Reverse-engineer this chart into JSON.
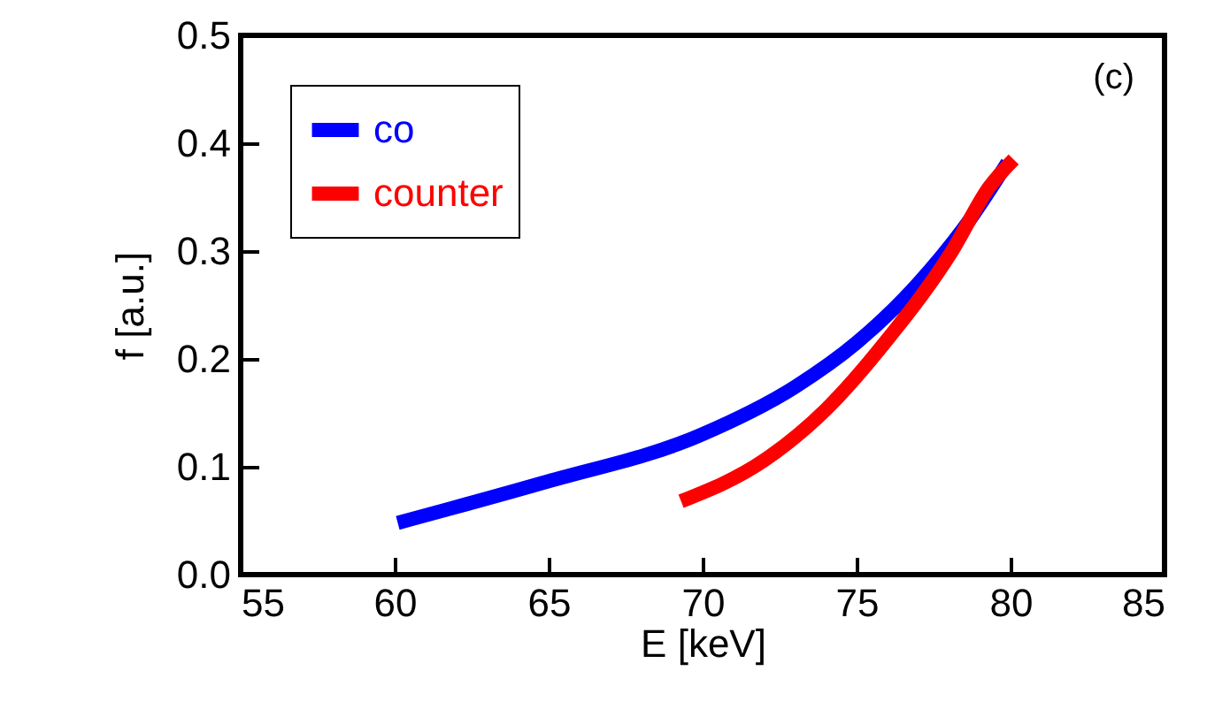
{
  "chart_data": {
    "type": "line",
    "xlabel": "E [keV]",
    "ylabel": "f [a.u.]",
    "xlim": [
      55,
      85
    ],
    "xticks": [
      55,
      60,
      65,
      70,
      75,
      80,
      85
    ],
    "ylim": [
      0.0,
      0.5
    ],
    "yticks": [
      {
        "value": 0,
        "label": "0.0"
      },
      0.1,
      0.2,
      0.3,
      0.4,
      0.5
    ],
    "series": [
      {
        "name": "co",
        "color": "#0000ff",
        "x": [
          60.1,
          64.8,
          69.9,
          73.0,
          75.0,
          77.0,
          78.7,
          79.9
        ],
        "values": [
          0.048,
          0.085,
          0.129,
          0.174,
          0.215,
          0.27,
          0.33,
          0.382
        ]
      },
      {
        "name": "counter",
        "color": "#ff0000",
        "x": [
          69.3,
          72.0,
          74.0,
          76.0,
          78.1,
          79.3,
          80.1
        ],
        "values": [
          0.068,
          0.106,
          0.153,
          0.218,
          0.3,
          0.359,
          0.385
        ]
      }
    ],
    "annotations": [
      "(c)"
    ],
    "legend": "top left",
    "grid": false
  }
}
